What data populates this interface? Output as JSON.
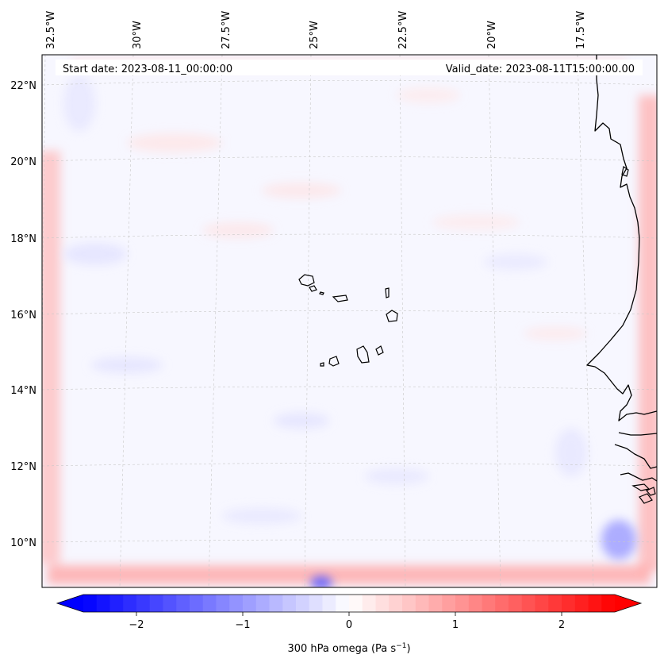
{
  "header": {
    "start_date": "Start date: 2023-08-11_00:00:00",
    "valid_date": "Valid_date: 2023-08-11T15:00:00.00"
  },
  "lon_labels": [
    "32.5°W",
    "30°W",
    "27.5°W",
    "25°W",
    "22.5°W",
    "20°W",
    "17.5°W"
  ],
  "lat_labels": [
    "22°N",
    "20°N",
    "18°N",
    "16°N",
    "14°N",
    "12°N",
    "10°N"
  ],
  "colorbar": {
    "label": "300 hPa omega (Pa s",
    "label_exp": "−1",
    "label_close": ")",
    "ticks": [
      "−2",
      "−1",
      "0",
      "1",
      "2"
    ],
    "tick_values": [
      -2,
      -1,
      0,
      1,
      2
    ],
    "min": -2.5,
    "max": 2.5,
    "cmap": "bwr"
  },
  "colors": {
    "negative": "#0000ff",
    "positive": "#ff0000",
    "neutral": "#ffffff"
  }
}
